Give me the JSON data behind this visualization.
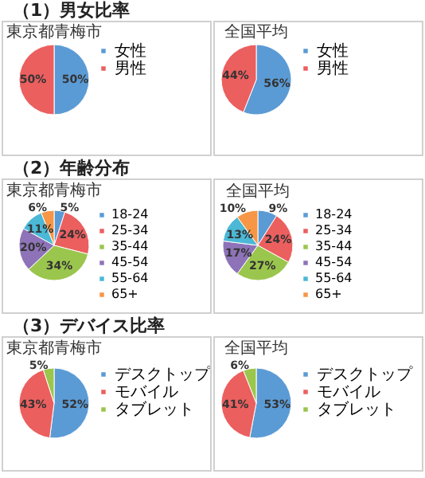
{
  "chart_data": [
    {
      "type": "pie",
      "title": "東京都青梅市",
      "annotations": [
        "（1）男女比率"
      ],
      "categories": [
        "女性",
        "男性"
      ],
      "values": [
        50,
        50
      ],
      "value_labels": [
        "50%",
        "50%"
      ],
      "colors": [
        "#5b9bd5",
        "#ec5f5f"
      ],
      "legend": "right"
    },
    {
      "type": "pie",
      "title": "全国平均",
      "categories": [
        "女性",
        "男性"
      ],
      "values": [
        56,
        44
      ],
      "value_labels": [
        "56%",
        "44%"
      ],
      "colors": [
        "#5b9bd5",
        "#ec5f5f"
      ],
      "legend": "right"
    },
    {
      "type": "pie",
      "title": "東京都青梅市",
      "annotations": [
        "（2）年齢分布"
      ],
      "categories": [
        "18-24",
        "25-34",
        "35-44",
        "45-54",
        "55-64",
        "65+"
      ],
      "values": [
        5,
        24,
        34,
        20,
        11,
        6
      ],
      "value_labels": [
        "5%",
        "24%",
        "34%",
        "20%",
        "11%",
        "6%"
      ],
      "colors": [
        "#5b9bd5",
        "#ec5f5f",
        "#9bc64d",
        "#8e73b8",
        "#4bb8d6",
        "#f79646"
      ],
      "legend": "right"
    },
    {
      "type": "pie",
      "title": "全国平均",
      "categories": [
        "18-24",
        "25-34",
        "35-44",
        "45-54",
        "55-64",
        "65+"
      ],
      "values": [
        9,
        24,
        27,
        17,
        13,
        10
      ],
      "value_labels": [
        "9%",
        "24%",
        "27%",
        "17%",
        "13%",
        "10%"
      ],
      "colors": [
        "#5b9bd5",
        "#ec5f5f",
        "#9bc64d",
        "#8e73b8",
        "#4bb8d6",
        "#f79646"
      ],
      "legend": "right"
    },
    {
      "type": "pie",
      "title": "東京都青梅市",
      "annotations": [
        "（3）デバイス比率"
      ],
      "categories": [
        "デスクトップ",
        "モバイル",
        "タブレット"
      ],
      "values": [
        52,
        43,
        5
      ],
      "value_labels": [
        "52%",
        "43%",
        "5%"
      ],
      "colors": [
        "#5b9bd5",
        "#ec5f5f",
        "#9bc64d"
      ],
      "legend": "right"
    },
    {
      "type": "pie",
      "title": "全国平均",
      "categories": [
        "デスクトップ",
        "モバイル",
        "タブレット"
      ],
      "values": [
        53,
        41,
        6
      ],
      "value_labels": [
        "53%",
        "41%",
        "6%"
      ],
      "colors": [
        "#5b9bd5",
        "#ec5f5f",
        "#9bc64d"
      ],
      "legend": "right"
    }
  ]
}
